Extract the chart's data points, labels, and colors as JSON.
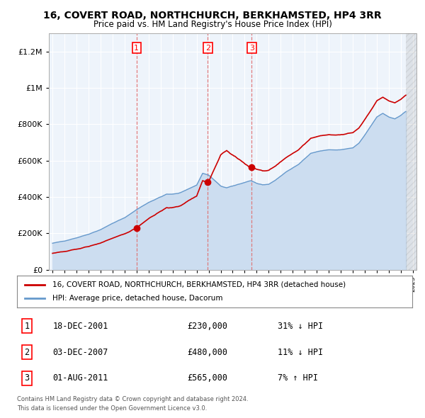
{
  "title": "16, COVERT ROAD, NORTHCHURCH, BERKHAMSTED, HP4 3RR",
  "subtitle": "Price paid vs. HM Land Registry's House Price Index (HPI)",
  "legend_line1": "16, COVERT ROAD, NORTHCHURCH, BERKHAMSTED, HP4 3RR (detached house)",
  "legend_line2": "HPI: Average price, detached house, Dacorum",
  "transactions": [
    {
      "num": 1,
      "date": "18-DEC-2001",
      "price": "£230,000",
      "pct": "31%",
      "dir": "↓",
      "x": 2002.0
    },
    {
      "num": 2,
      "date": "03-DEC-2007",
      "price": "£480,000",
      "pct": "11%",
      "dir": "↓",
      "x": 2007.92
    },
    {
      "num": 3,
      "date": "01-AUG-2011",
      "price": "£565,000",
      "pct": "7%",
      "dir": "↑",
      "x": 2011.58
    }
  ],
  "vline_color": "#e07070",
  "hpi_color": "#6699cc",
  "hpi_fill_color": "#ccddf0",
  "sale_color": "#cc0000",
  "footer1": "Contains HM Land Registry data © Crown copyright and database right 2024.",
  "footer2": "This data is licensed under the Open Government Licence v3.0.",
  "ylim": [
    0,
    1300000
  ],
  "xlim": [
    1994.7,
    2025.3
  ],
  "bg_color": "#ffffff",
  "plot_bg": "#eef4fb",
  "grid_color": "#ffffff"
}
